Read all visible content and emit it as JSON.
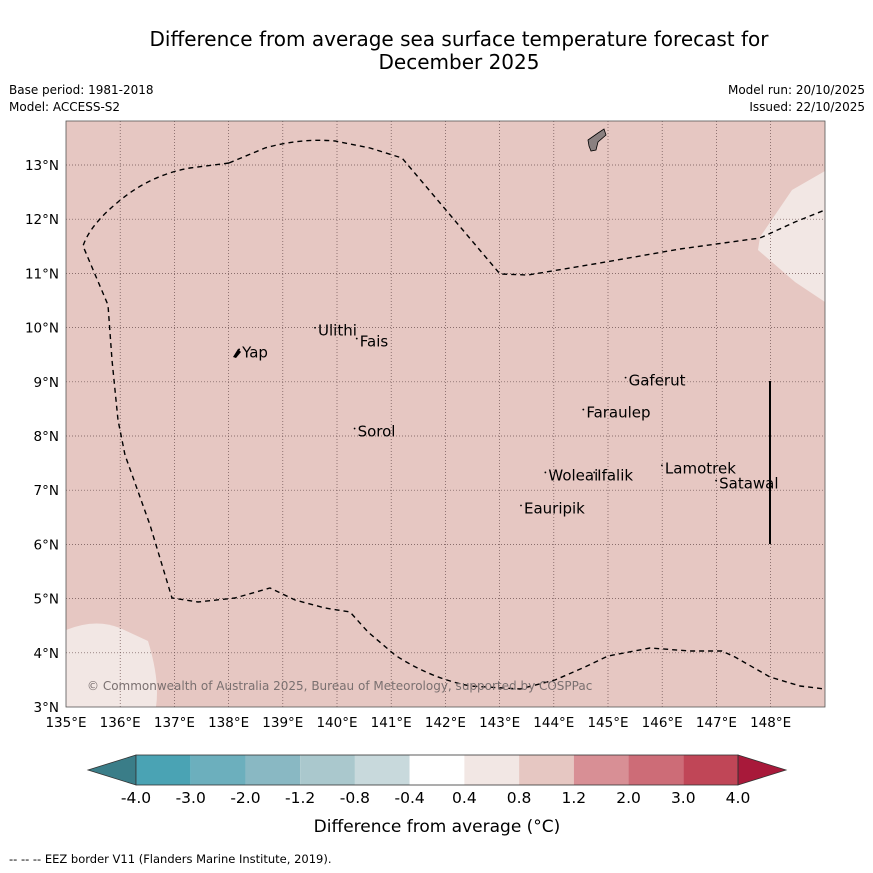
{
  "header": {
    "title_line1": "Difference from average sea surface temperature forecast for",
    "title_line2": "December 2025",
    "base_period": "Base period: 1981-2018",
    "model": "Model: ACCESS-S2",
    "model_run": "Model run: 20/10/2025",
    "issued": "Issued: 22/10/2025"
  },
  "map": {
    "extent": {
      "lon": [
        135,
        149
      ],
      "lat": [
        3,
        13.8
      ]
    },
    "lon_ticks": [
      "135°E",
      "136°E",
      "137°E",
      "138°E",
      "139°E",
      "140°E",
      "141°E",
      "142°E",
      "143°E",
      "144°E",
      "145°E",
      "146°E",
      "147°E",
      "148°E"
    ],
    "lat_ticks": [
      "3°N",
      "4°N",
      "5°N",
      "6°N",
      "7°N",
      "8°N",
      "9°N",
      "10°N",
      "11°N",
      "12°N",
      "13°N"
    ],
    "background_class_color": "#e6c7c2",
    "light_class_color": "#f2e7e4",
    "islands": [
      {
        "name": "Yap",
        "lon": 138.25,
        "lat": 9.45
      },
      {
        "name": "Ulithi",
        "lon": 139.65,
        "lat": 9.85
      },
      {
        "name": "Fais",
        "lon": 140.42,
        "lat": 9.65
      },
      {
        "name": "Sorol",
        "lon": 140.38,
        "lat": 7.99
      },
      {
        "name": "Gaferut",
        "lon": 145.38,
        "lat": 8.93
      },
      {
        "name": "Faraulep",
        "lon": 144.6,
        "lat": 8.34
      },
      {
        "name": "Woleai",
        "lon": 143.9,
        "lat": 7.18
      },
      {
        "name": "Ifalik",
        "lon": 144.8,
        "lat": 7.18
      },
      {
        "name": "Lamotrek",
        "lon": 146.05,
        "lat": 7.31
      },
      {
        "name": "Satawal",
        "lon": 147.05,
        "lat": 7.03
      },
      {
        "name": "Eauripik",
        "lon": 143.45,
        "lat": 6.57
      }
    ],
    "copyright": "© Commonwealth of Australia 2025, Bureau of Meteorology, supported by COSPPac"
  },
  "legend": {
    "ticks": [
      "-4.0",
      "-3.0",
      "-2.0",
      "-1.2",
      "-0.8",
      "-0.4",
      "0.4",
      "0.8",
      "1.2",
      "2.0",
      "3.0",
      "4.0"
    ],
    "colors": [
      "#4aa3b4",
      "#6cafbd",
      "#89b8c3",
      "#aac8cd",
      "#c8d9dc",
      "#ffffff",
      "#f2e7e4",
      "#e6c7c2",
      "#d88f95",
      "#cd6c77",
      "#c04657"
    ],
    "under_color": "#3a7d88",
    "over_color": "#a8193a",
    "label": "Difference from average (°C)"
  },
  "footnote": "--  --  -- EEZ border V11 (Flanders Marine Institute, 2019)."
}
